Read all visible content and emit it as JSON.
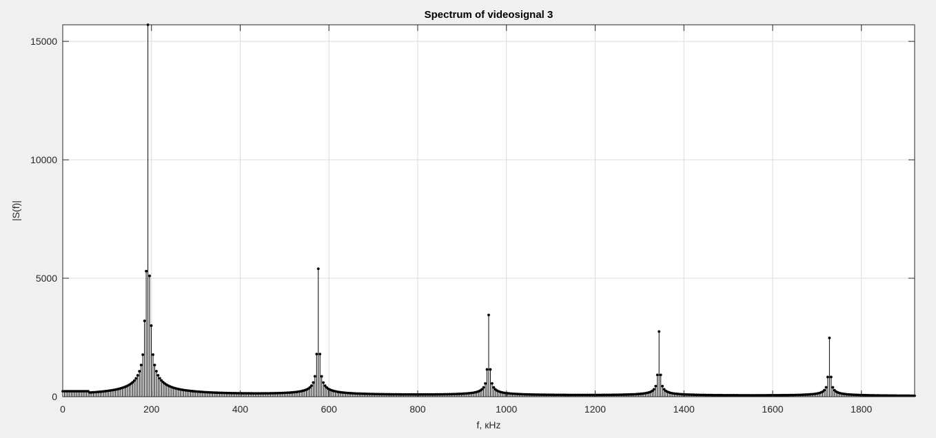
{
  "chart_data": {
    "type": "stem",
    "title": "Spectrum of videosignal 3",
    "xlabel": "f, кHz",
    "ylabel": "|S(f)|",
    "xlim": [
      0,
      1920
    ],
    "ylim": [
      0,
      15700
    ],
    "xticks": [
      0,
      200,
      400,
      600,
      800,
      1000,
      1200,
      1400,
      1600,
      1800
    ],
    "yticks": [
      0,
      5000,
      10000,
      15000
    ],
    "grid": true,
    "sample_step_khz": 3.84,
    "peaks": [
      {
        "f": 192,
        "value": 15700
      },
      {
        "f": 576,
        "value": 5400
      },
      {
        "f": 960,
        "value": 3450
      },
      {
        "f": 1344,
        "value": 2750
      },
      {
        "f": 1728,
        "value": 2480
      }
    ],
    "near_peak_samples": [
      {
        "f": 188.2,
        "value": 5300
      },
      {
        "f": 195.8,
        "value": 5100
      },
      {
        "f": 184.3,
        "value": 3200
      },
      {
        "f": 199.7,
        "value": 3000
      },
      {
        "f": 572.2,
        "value": 1800
      },
      {
        "f": 579.8,
        "value": 1800
      },
      {
        "f": 956.2,
        "value": 1150
      },
      {
        "f": 963.8,
        "value": 1150
      },
      {
        "f": 1340.2,
        "value": 920
      },
      {
        "f": 1347.8,
        "value": 920
      },
      {
        "f": 1724.2,
        "value": 830
      },
      {
        "f": 1731.8,
        "value": 830
      }
    ],
    "baseline_level_at_zero": 230,
    "colors": {
      "stem": "#000000",
      "grid": "#dcdcdc",
      "axes": "#262626",
      "plot_background": "#ffffff",
      "figure_background": "#f0f0f0"
    }
  }
}
